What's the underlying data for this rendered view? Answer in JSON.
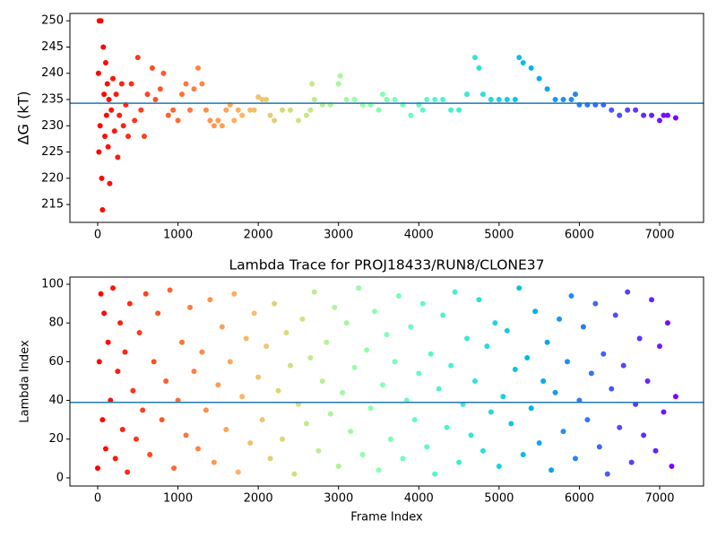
{
  "chart_data": [
    {
      "type": "scatter",
      "ylabel": "ΔG (kT)",
      "colormap": "rainbow_r",
      "x": [
        20,
        40,
        10,
        30,
        50,
        15,
        60,
        70,
        80,
        90,
        100,
        110,
        120,
        130,
        140,
        150,
        170,
        190,
        210,
        230,
        250,
        270,
        300,
        320,
        350,
        380,
        420,
        460,
        500,
        540,
        580,
        620,
        680,
        720,
        780,
        820,
        880,
        940,
        1000,
        1050,
        1100,
        1150,
        1200,
        1250,
        1300,
        1350,
        1400,
        1450,
        1500,
        1550,
        1600,
        1650,
        1700,
        1750,
        1800,
        1900,
        1950,
        2000,
        2050,
        2100,
        2150,
        2200,
        2300,
        2400,
        2500,
        2600,
        2650,
        2670,
        2700,
        2800,
        2900,
        3000,
        3020,
        3100,
        3200,
        3300,
        3400,
        3500,
        3550,
        3600,
        3700,
        3800,
        3900,
        4000,
        4050,
        4100,
        4200,
        4300,
        4400,
        4500,
        4600,
        4700,
        4750,
        4800,
        4900,
        5000,
        5100,
        5200,
        5250,
        5300,
        5400,
        5500,
        5600,
        5700,
        5800,
        5900,
        5950,
        6000,
        6100,
        6200,
        6300,
        6400,
        6500,
        6600,
        6700,
        6800,
        6900,
        7000,
        7050,
        7100,
        7200
      ],
      "values": [
        250,
        250,
        240,
        230,
        220,
        225,
        214,
        245,
        236,
        228,
        242,
        232,
        238,
        226,
        235,
        219,
        233,
        239,
        229,
        236,
        224,
        232,
        238,
        230,
        234,
        228,
        238,
        231,
        243,
        233,
        228,
        236,
        241,
        235,
        237,
        240,
        232,
        233,
        231,
        236,
        238,
        233,
        237,
        241,
        238,
        233,
        231,
        230,
        231,
        230,
        233,
        234,
        231,
        233,
        232,
        233,
        233,
        235.5,
        235,
        235,
        232,
        231,
        233,
        233,
        231,
        232,
        233,
        238,
        235,
        234,
        234,
        238,
        239.5,
        235,
        235,
        234,
        234,
        233,
        236,
        235,
        235,
        234,
        232,
        234,
        233,
        235,
        235,
        235,
        233,
        233,
        236,
        243,
        241,
        236,
        235,
        235,
        235,
        235,
        243,
        242,
        241,
        239,
        237,
        235,
        235,
        235,
        236,
        234,
        234,
        234,
        234,
        233,
        232,
        233,
        233,
        232,
        232,
        231,
        232,
        232,
        231.5
      ],
      "xlim": [
        -346,
        7547
      ],
      "ylim": [
        211.6,
        251.4
      ],
      "xticks": [
        0,
        1000,
        2000,
        3000,
        4000,
        5000,
        6000,
        7000
      ],
      "yticks": [
        215,
        220,
        225,
        230,
        235,
        240,
        245,
        250
      ],
      "hline": {
        "value": 234.3,
        "color": "#1f77b4"
      }
    },
    {
      "type": "scatter",
      "title": "Lambda Trace for PROJ18433/RUN8/CLONE37",
      "xlabel": "Frame Index",
      "ylabel": "Lambda Index",
      "colormap": "rainbow_r",
      "x": [
        0,
        20,
        40,
        60,
        80,
        100,
        130,
        160,
        190,
        220,
        250,
        280,
        310,
        340,
        370,
        400,
        440,
        480,
        520,
        560,
        600,
        650,
        700,
        750,
        800,
        850,
        900,
        950,
        1000,
        1050,
        1100,
        1150,
        1200,
        1250,
        1300,
        1350,
        1400,
        1450,
        1500,
        1550,
        1600,
        1650,
        1700,
        1750,
        1800,
        1850,
        1900,
        1950,
        2000,
        2050,
        2100,
        2150,
        2200,
        2250,
        2300,
        2350,
        2400,
        2450,
        2500,
        2550,
        2600,
        2650,
        2700,
        2750,
        2800,
        2850,
        2900,
        2950,
        3000,
        3050,
        3100,
        3150,
        3200,
        3250,
        3300,
        3350,
        3400,
        3450,
        3500,
        3550,
        3600,
        3650,
        3700,
        3750,
        3800,
        3850,
        3900,
        3950,
        4000,
        4050,
        4100,
        4150,
        4200,
        4250,
        4300,
        4350,
        4400,
        4450,
        4500,
        4550,
        4600,
        4650,
        4700,
        4750,
        4800,
        4850,
        4900,
        4950,
        5000,
        5050,
        5100,
        5150,
        5200,
        5250,
        5300,
        5350,
        5400,
        5450,
        5500,
        5550,
        5600,
        5650,
        5700,
        5750,
        5800,
        5850,
        5900,
        5950,
        6000,
        6050,
        6100,
        6150,
        6200,
        6250,
        6300,
        6350,
        6400,
        6450,
        6500,
        6550,
        6600,
        6650,
        6700,
        6750,
        6800,
        6850,
        6900,
        6950,
        7000,
        7050,
        7100,
        7150,
        7200
      ],
      "values": [
        5,
        60,
        95,
        30,
        85,
        15,
        70,
        40,
        98,
        10,
        55,
        80,
        25,
        65,
        3,
        90,
        45,
        20,
        75,
        35,
        95,
        12,
        60,
        85,
        30,
        50,
        97,
        5,
        40,
        70,
        22,
        88,
        55,
        15,
        65,
        35,
        92,
        8,
        48,
        78,
        25,
        60,
        95,
        3,
        42,
        72,
        18,
        85,
        52,
        30,
        68,
        10,
        90,
        45,
        20,
        75,
        58,
        2,
        38,
        82,
        28,
        62,
        96,
        14,
        50,
        70,
        33,
        88,
        6,
        44,
        80,
        24,
        57,
        98,
        12,
        66,
        36,
        86,
        4,
        48,
        74,
        20,
        60,
        94,
        10,
        40,
        78,
        30,
        54,
        90,
        16,
        64,
        2,
        46,
        84,
        26,
        58,
        96,
        8,
        38,
        72,
        22,
        50,
        92,
        14,
        68,
        34,
        80,
        6,
        42,
        76,
        28,
        56,
        98,
        12,
        62,
        36,
        86,
        18,
        50,
        70,
        4,
        44,
        82,
        24,
        60,
        94,
        10,
        40,
        78,
        30,
        54,
        90,
        16,
        64,
        2,
        46,
        84,
        26,
        58,
        96,
        8,
        38,
        72,
        22,
        50,
        92,
        14,
        68,
        34,
        80,
        6,
        42
      ],
      "xlim": [
        -346,
        7547
      ],
      "ylim": [
        -4.2,
        103.7
      ],
      "xticks": [
        0,
        1000,
        2000,
        3000,
        4000,
        5000,
        6000,
        7000
      ],
      "yticks": [
        0,
        20,
        40,
        60,
        80,
        100
      ],
      "hline": {
        "value": 39,
        "color": "#1f77b4"
      }
    }
  ]
}
